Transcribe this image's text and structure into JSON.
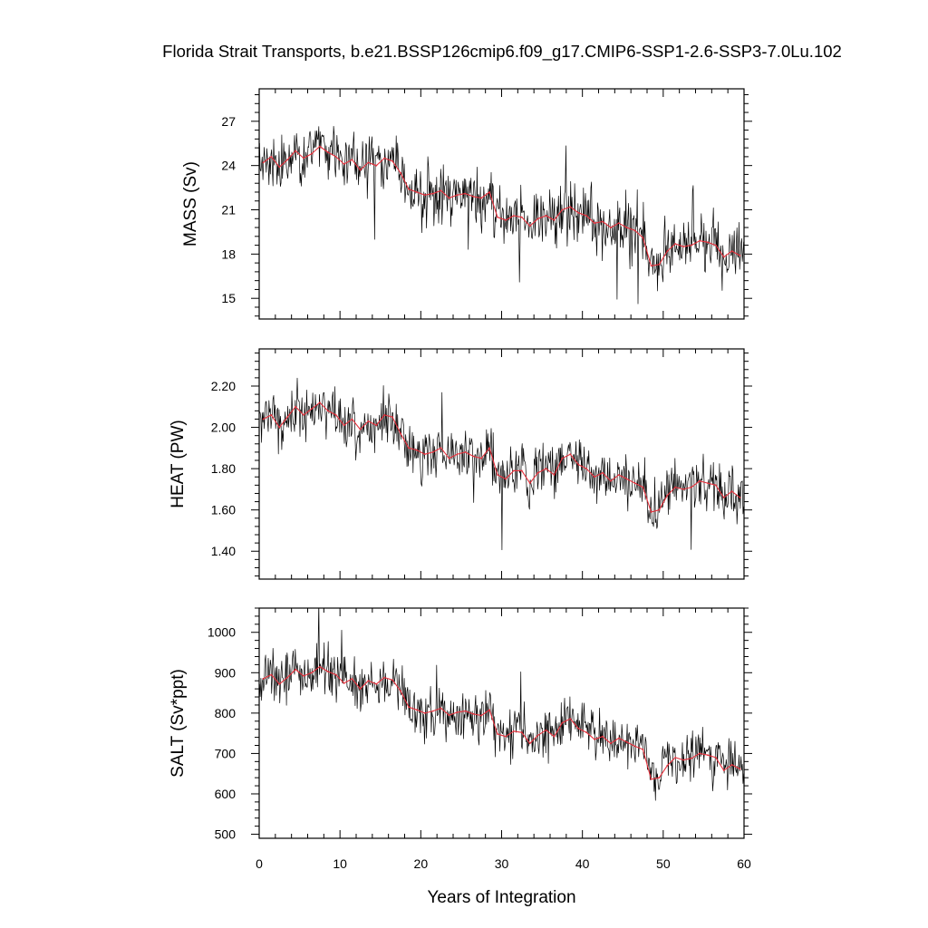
{
  "figure": {
    "title": "Florida Strait Transports, b.e21.BSSP126cmip6.f09_g17.CMIP6-SSP1-2.6-SSP3-7.0Lu.102"
  },
  "chart_data": [
    {
      "type": "line",
      "ylabel": "MASS (Sv)",
      "xlabel": "",
      "xlim": [
        0,
        60
      ],
      "ylim": [
        13.6,
        29.2
      ],
      "yticks": [
        15,
        18,
        21,
        24,
        27
      ],
      "ytick_labels": [
        "15",
        "18",
        "21",
        "24",
        "27"
      ],
      "xticks": [
        0,
        10,
        20,
        30,
        40,
        50,
        60
      ],
      "xtick_labels": [],
      "grid": false,
      "series": [
        {
          "role": "monthly",
          "color": "#000000",
          "x": [
            0.5,
            1.5,
            2.5,
            3.5,
            4.5,
            5.5,
            6.5,
            7.5,
            8.5,
            9.5,
            10.5,
            11.5,
            12.5,
            13.5,
            14.5,
            15.5,
            16.5,
            17.5,
            18.5,
            19.5,
            20.5,
            21.5,
            22.5,
            23.5,
            24.5,
            25.5,
            26.5,
            27.5,
            28.5,
            29.5,
            30.5,
            31.5,
            32.5,
            33.5,
            34.5,
            35.5,
            36.5,
            37.5,
            38.5,
            39.5,
            40.5,
            41.5,
            42.5,
            43.5,
            44.5,
            45.5,
            46.5,
            47.5,
            48.5,
            49.5,
            50.5,
            51.5,
            52.5,
            53.5,
            54.5,
            55.5,
            56.5,
            57.5,
            58.5,
            59.5
          ],
          "values": [
            24.2,
            24.6,
            23.9,
            24.4,
            25.0,
            24.5,
            24.8,
            25.3,
            24.9,
            24.6,
            24.1,
            24.4,
            23.7,
            24.2,
            24.0,
            24.5,
            24.3,
            23.5,
            22.4,
            22.2,
            22.0,
            22.1,
            22.3,
            21.8,
            22.0,
            22.1,
            21.9,
            21.8,
            22.2,
            20.5,
            20.3,
            20.6,
            20.5,
            19.9,
            20.4,
            20.6,
            20.3,
            21.0,
            21.2,
            20.8,
            20.6,
            20.1,
            20.2,
            19.8,
            20.1,
            19.8,
            19.6,
            19.1,
            17.2,
            17.3,
            18.2,
            18.7,
            18.5,
            18.6,
            18.9,
            18.8,
            18.6,
            17.8,
            18.2,
            17.9
          ]
        },
        {
          "role": "annual-mean",
          "color": "#e8303c",
          "x": [
            0.5,
            1.5,
            2.5,
            3.5,
            4.5,
            5.5,
            6.5,
            7.5,
            8.5,
            9.5,
            10.5,
            11.5,
            12.5,
            13.5,
            14.5,
            15.5,
            16.5,
            17.5,
            18.5,
            19.5,
            20.5,
            21.5,
            22.5,
            23.5,
            24.5,
            25.5,
            26.5,
            27.5,
            28.5,
            29.5,
            30.5,
            31.5,
            32.5,
            33.5,
            34.5,
            35.5,
            36.5,
            37.5,
            38.5,
            39.5,
            40.5,
            41.5,
            42.5,
            43.5,
            44.5,
            45.5,
            46.5,
            47.5,
            48.5,
            49.5,
            50.5,
            51.5,
            52.5,
            53.5,
            54.5,
            55.5,
            56.5,
            57.5,
            58.5,
            59.5
          ],
          "values": [
            24.2,
            24.6,
            23.9,
            24.4,
            25.0,
            24.5,
            24.8,
            25.3,
            24.9,
            24.6,
            24.1,
            24.4,
            23.7,
            24.2,
            24.0,
            24.5,
            24.3,
            23.5,
            22.4,
            22.2,
            22.0,
            22.1,
            22.3,
            21.8,
            22.0,
            22.1,
            21.9,
            21.8,
            22.2,
            20.5,
            20.3,
            20.6,
            20.5,
            19.9,
            20.4,
            20.6,
            20.3,
            21.0,
            21.2,
            20.8,
            20.6,
            20.1,
            20.2,
            19.8,
            20.1,
            19.8,
            19.6,
            19.1,
            17.2,
            17.3,
            18.2,
            18.7,
            18.5,
            18.6,
            18.9,
            18.8,
            18.6,
            17.8,
            18.2,
            17.9
          ]
        }
      ]
    },
    {
      "type": "line",
      "ylabel": "HEAT (PW)",
      "xlabel": "",
      "xlim": [
        0,
        60
      ],
      "ylim": [
        1.265,
        2.38
      ],
      "yticks": [
        1.4,
        1.6,
        1.8,
        2.0,
        2.2
      ],
      "ytick_labels": [
        "1.40",
        "1.60",
        "1.80",
        "2.00",
        "2.20"
      ],
      "xticks": [
        0,
        10,
        20,
        30,
        40,
        50,
        60
      ],
      "xtick_labels": [],
      "grid": false,
      "series": [
        {
          "role": "monthly",
          "color": "#000000",
          "x": [
            0.5,
            1.5,
            2.5,
            3.5,
            4.5,
            5.5,
            6.5,
            7.5,
            8.5,
            9.5,
            10.5,
            11.5,
            12.5,
            13.5,
            14.5,
            15.5,
            16.5,
            17.5,
            18.5,
            19.5,
            20.5,
            21.5,
            22.5,
            23.5,
            24.5,
            25.5,
            26.5,
            27.5,
            28.5,
            29.5,
            30.5,
            31.5,
            32.5,
            33.5,
            34.5,
            35.5,
            36.5,
            37.5,
            38.5,
            39.5,
            40.5,
            41.5,
            42.5,
            43.5,
            44.5,
            45.5,
            46.5,
            47.5,
            48.5,
            49.5,
            50.5,
            51.5,
            52.5,
            53.5,
            54.5,
            55.5,
            56.5,
            57.5,
            58.5,
            59.5
          ],
          "values": [
            2.04,
            2.06,
            2.0,
            2.05,
            2.1,
            2.06,
            2.09,
            2.12,
            2.08,
            2.06,
            2.01,
            2.04,
            1.99,
            2.03,
            2.01,
            2.06,
            2.05,
            1.97,
            1.9,
            1.89,
            1.87,
            1.88,
            1.9,
            1.85,
            1.87,
            1.88,
            1.86,
            1.85,
            1.9,
            1.77,
            1.75,
            1.79,
            1.79,
            1.73,
            1.78,
            1.8,
            1.77,
            1.85,
            1.87,
            1.82,
            1.8,
            1.76,
            1.78,
            1.74,
            1.77,
            1.75,
            1.73,
            1.71,
            1.59,
            1.6,
            1.67,
            1.71,
            1.7,
            1.71,
            1.74,
            1.73,
            1.72,
            1.66,
            1.69,
            1.66
          ]
        },
        {
          "role": "annual-mean",
          "color": "#e8303c",
          "x": [
            0.5,
            1.5,
            2.5,
            3.5,
            4.5,
            5.5,
            6.5,
            7.5,
            8.5,
            9.5,
            10.5,
            11.5,
            12.5,
            13.5,
            14.5,
            15.5,
            16.5,
            17.5,
            18.5,
            19.5,
            20.5,
            21.5,
            22.5,
            23.5,
            24.5,
            25.5,
            26.5,
            27.5,
            28.5,
            29.5,
            30.5,
            31.5,
            32.5,
            33.5,
            34.5,
            35.5,
            36.5,
            37.5,
            38.5,
            39.5,
            40.5,
            41.5,
            42.5,
            43.5,
            44.5,
            45.5,
            46.5,
            47.5,
            48.5,
            49.5,
            50.5,
            51.5,
            52.5,
            53.5,
            54.5,
            55.5,
            56.5,
            57.5,
            58.5,
            59.5
          ],
          "values": [
            2.04,
            2.06,
            2.0,
            2.05,
            2.1,
            2.06,
            2.09,
            2.12,
            2.08,
            2.06,
            2.01,
            2.04,
            1.99,
            2.03,
            2.01,
            2.06,
            2.05,
            1.97,
            1.9,
            1.89,
            1.87,
            1.88,
            1.9,
            1.85,
            1.87,
            1.88,
            1.86,
            1.85,
            1.9,
            1.77,
            1.75,
            1.79,
            1.79,
            1.73,
            1.78,
            1.8,
            1.77,
            1.85,
            1.87,
            1.82,
            1.8,
            1.76,
            1.78,
            1.74,
            1.77,
            1.75,
            1.73,
            1.71,
            1.59,
            1.6,
            1.67,
            1.71,
            1.7,
            1.71,
            1.74,
            1.73,
            1.72,
            1.66,
            1.69,
            1.66
          ]
        }
      ]
    },
    {
      "type": "line",
      "ylabel": "SALT (Sv*ppt)",
      "xlabel": "Years of Integration",
      "xlim": [
        0,
        60
      ],
      "ylim": [
        490,
        1060
      ],
      "yticks": [
        500,
        600,
        700,
        800,
        900,
        1000
      ],
      "ytick_labels": [
        "500",
        "600",
        "700",
        "800",
        "900",
        "1000"
      ],
      "xticks": [
        0,
        10,
        20,
        30,
        40,
        50,
        60
      ],
      "xtick_labels": [
        "0",
        "10",
        "20",
        "30",
        "40",
        "50",
        "60"
      ],
      "grid": false,
      "series": [
        {
          "role": "monthly",
          "color": "#000000",
          "x": [
            0.5,
            1.5,
            2.5,
            3.5,
            4.5,
            5.5,
            6.5,
            7.5,
            8.5,
            9.5,
            10.5,
            11.5,
            12.5,
            13.5,
            14.5,
            15.5,
            16.5,
            17.5,
            18.5,
            19.5,
            20.5,
            21.5,
            22.5,
            23.5,
            24.5,
            25.5,
            26.5,
            27.5,
            28.5,
            29.5,
            30.5,
            31.5,
            32.5,
            33.5,
            34.5,
            35.5,
            36.5,
            37.5,
            38.5,
            39.5,
            40.5,
            41.5,
            42.5,
            43.5,
            44.5,
            45.5,
            46.5,
            47.5,
            48.5,
            49.5,
            50.5,
            51.5,
            52.5,
            53.5,
            54.5,
            55.5,
            56.5,
            57.5,
            58.5,
            59.5
          ],
          "values": [
            885,
            895,
            872,
            888,
            908,
            892,
            900,
            915,
            903,
            895,
            874,
            885,
            860,
            880,
            872,
            888,
            882,
            855,
            815,
            808,
            800,
            805,
            812,
            795,
            802,
            805,
            798,
            794,
            808,
            748,
            742,
            755,
            752,
            725,
            745,
            758,
            742,
            776,
            786,
            762,
            752,
            735,
            742,
            725,
            738,
            728,
            718,
            710,
            636,
            640,
            670,
            690,
            684,
            688,
            700,
            696,
            690,
            658,
            672,
            662
          ]
        },
        {
          "role": "annual-mean",
          "color": "#e8303c",
          "x": [
            0.5,
            1.5,
            2.5,
            3.5,
            4.5,
            5.5,
            6.5,
            7.5,
            8.5,
            9.5,
            10.5,
            11.5,
            12.5,
            13.5,
            14.5,
            15.5,
            16.5,
            17.5,
            18.5,
            19.5,
            20.5,
            21.5,
            22.5,
            23.5,
            24.5,
            25.5,
            26.5,
            27.5,
            28.5,
            29.5,
            30.5,
            31.5,
            32.5,
            33.5,
            34.5,
            35.5,
            36.5,
            37.5,
            38.5,
            39.5,
            40.5,
            41.5,
            42.5,
            43.5,
            44.5,
            45.5,
            46.5,
            47.5,
            48.5,
            49.5,
            50.5,
            51.5,
            52.5,
            53.5,
            54.5,
            55.5,
            56.5,
            57.5,
            58.5,
            59.5
          ],
          "values": [
            885,
            895,
            872,
            888,
            908,
            892,
            900,
            915,
            903,
            895,
            874,
            885,
            860,
            880,
            872,
            888,
            882,
            855,
            815,
            808,
            800,
            805,
            812,
            795,
            802,
            805,
            798,
            794,
            808,
            748,
            742,
            755,
            752,
            725,
            745,
            758,
            742,
            776,
            786,
            762,
            752,
            735,
            742,
            725,
            738,
            728,
            718,
            710,
            636,
            640,
            670,
            690,
            684,
            688,
            700,
            696,
            690,
            658,
            672,
            662
          ]
        }
      ]
    }
  ]
}
